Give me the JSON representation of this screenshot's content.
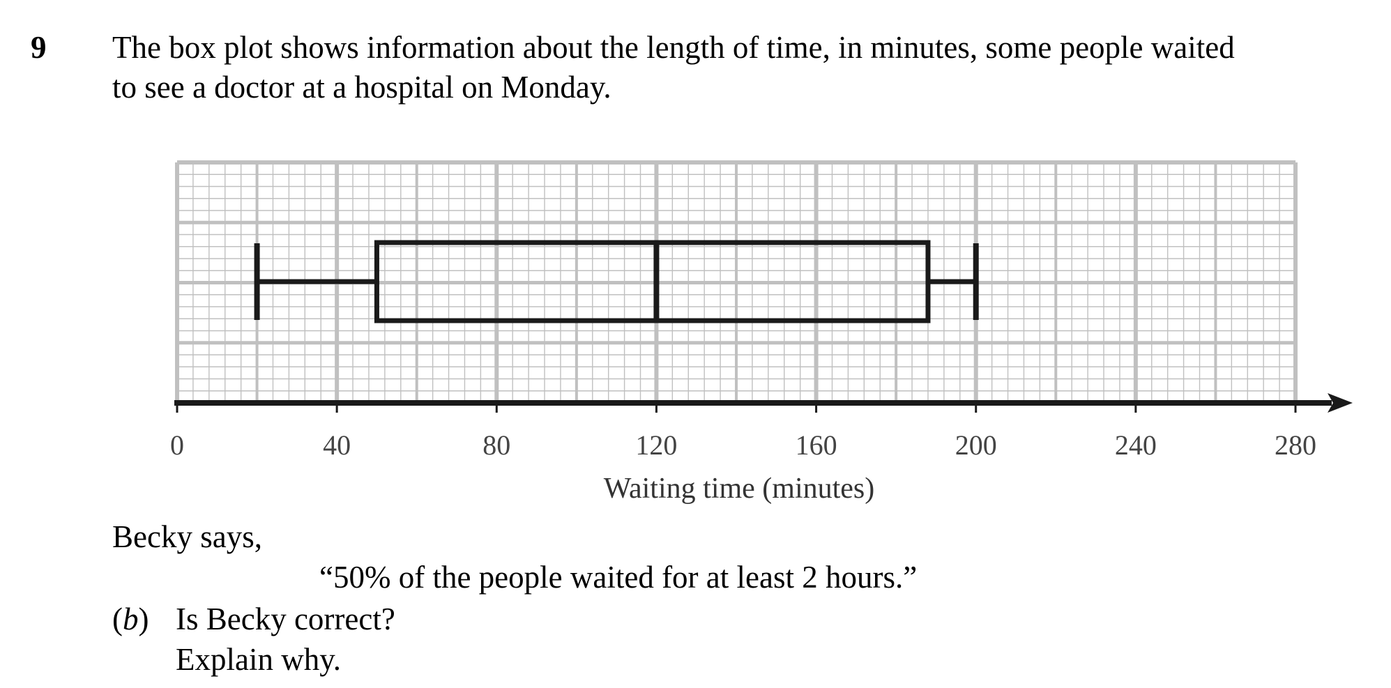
{
  "question": {
    "number": "9",
    "line1": "The box plot shows information about the length of time, in minutes, some people waited",
    "line2": "to see a doctor at a hospital on Monday."
  },
  "chart_data": {
    "type": "boxplot",
    "xlabel": "Waiting time (minutes)",
    "xlim": [
      0,
      280
    ],
    "ticks": [
      0,
      40,
      80,
      120,
      160,
      200,
      240,
      280
    ],
    "tick_labels": [
      "0",
      "40",
      "80",
      "120",
      "160",
      "200",
      "240",
      "280"
    ],
    "minor_step": 4,
    "grid": true,
    "box": {
      "min": 20,
      "lower_quartile": 50,
      "median": 120,
      "upper_quartile": 188,
      "max": 200
    },
    "colors": {
      "grid": "#c0c0c0",
      "box": "#1a1a1a",
      "axis": "#1a1a1a"
    }
  },
  "statement": {
    "intro": "Becky says,",
    "quote": "“50% of the people waited for at least 2 hours.”"
  },
  "part_b": {
    "label": "b",
    "question": "Is Becky correct?",
    "instruction": "Explain why."
  }
}
